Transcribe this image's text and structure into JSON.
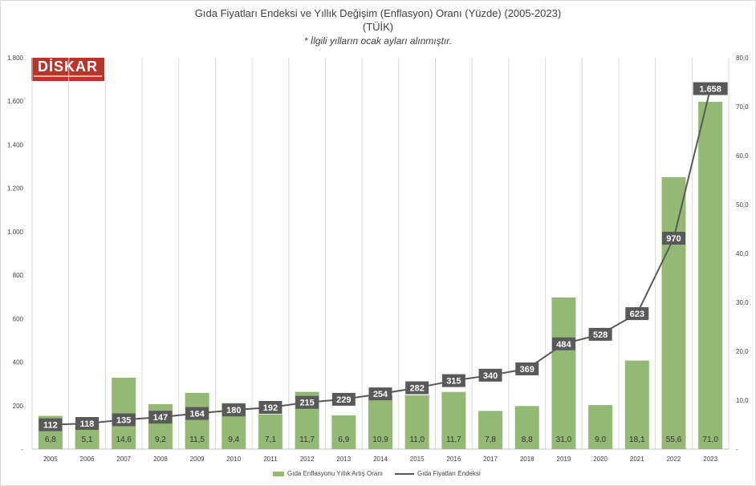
{
  "chart_data": {
    "type": "bar+line",
    "title": "Gıda Fiyatları Endeksi ve Yıllık Değişim (Enflasyon) Oranı (Yüzde) (2005-2023)",
    "subtitle": "(TÜİK)",
    "note": "* İlgili yılların ocak ayları alınmıştır.",
    "categories": [
      "2005",
      "2006",
      "2007",
      "2008",
      "2009",
      "2010",
      "2011",
      "2012",
      "2013",
      "2014",
      "2015",
      "2016",
      "2017",
      "2018",
      "2019",
      "2020",
      "2021",
      "2022",
      "2023"
    ],
    "series": [
      {
        "name": "Gıda Enflasyonu Yıllık Artış Oranı",
        "kind": "bar",
        "axis": "right",
        "color": "#93b975",
        "values": [
          6.8,
          5.1,
          14.6,
          9.2,
          11.5,
          9.4,
          7.1,
          11.7,
          6.9,
          10.9,
          11.0,
          11.7,
          7.8,
          8.8,
          31.0,
          9.0,
          18.1,
          55.6,
          71.0
        ],
        "labels": [
          "6,8",
          "5,1",
          "14,6",
          "9,2",
          "11,5",
          "9,4",
          "7,1",
          "11,7",
          "6,9",
          "10,9",
          "11,0",
          "11,7",
          "7,8",
          "8,8",
          "31,0",
          "9,0",
          "18,1",
          "55,6",
          "71,0"
        ]
      },
      {
        "name": "Gıda Fiyatları Endeksi",
        "kind": "line",
        "axis": "left",
        "color": "#595959",
        "values": [
          112,
          118,
          135,
          147,
          164,
          180,
          192,
          215,
          229,
          254,
          282,
          315,
          340,
          369,
          484,
          528,
          623,
          970,
          1658
        ],
        "labels": [
          "112",
          "118",
          "135",
          "147",
          "164",
          "180",
          "192",
          "215",
          "229",
          "254",
          "282",
          "315",
          "340",
          "369",
          "484",
          "528",
          "623",
          "970",
          "1.658"
        ]
      }
    ],
    "left_axis": {
      "min": 0,
      "max": 1800,
      "ticks": [
        "-",
        "200",
        "400",
        "600",
        "800",
        "1.000",
        "1.200",
        "1.400",
        "1.600",
        "1.800"
      ]
    },
    "right_axis": {
      "min": 0,
      "max": 80,
      "ticks": [
        "-",
        "10,0",
        "20,0",
        "30,0",
        "40,0",
        "50,0",
        "60,0",
        "70,0",
        "80,0"
      ]
    },
    "grid": "vertical",
    "legend_position": "bottom"
  },
  "logo": {
    "text": "DİSKAR"
  }
}
